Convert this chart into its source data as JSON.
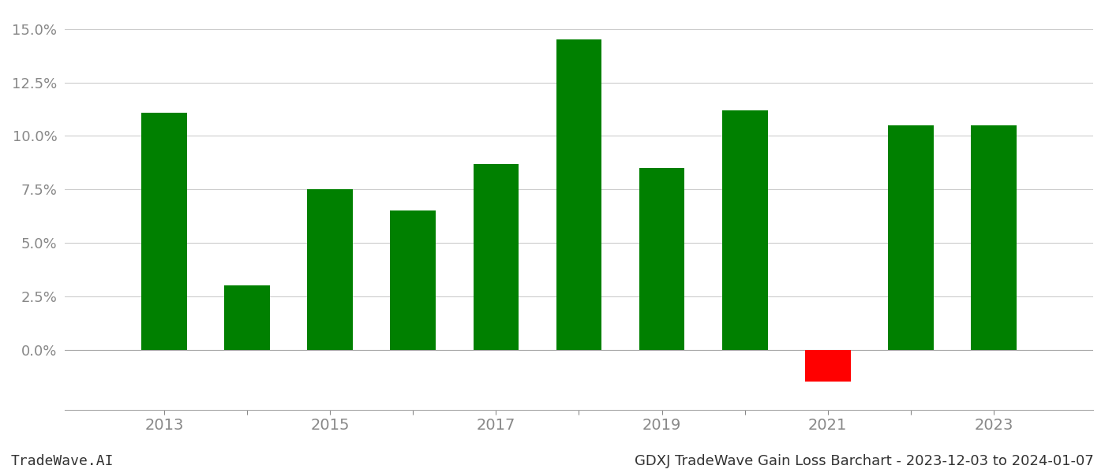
{
  "years": [
    2013,
    2014,
    2015,
    2016,
    2017,
    2018,
    2019,
    2020,
    2021,
    2022,
    2023
  ],
  "values": [
    0.111,
    0.03,
    0.075,
    0.065,
    0.087,
    0.145,
    0.085,
    0.112,
    -0.015,
    0.105,
    0.105
  ],
  "bar_colors": [
    "#008000",
    "#008000",
    "#008000",
    "#008000",
    "#008000",
    "#008000",
    "#008000",
    "#008000",
    "#ff0000",
    "#008000",
    "#008000"
  ],
  "background_color": "#ffffff",
  "grid_color": "#cccccc",
  "ylim_min": -0.028,
  "ylim_max": 0.158,
  "yticks": [
    0.0,
    0.025,
    0.05,
    0.075,
    0.1,
    0.125,
    0.15
  ],
  "xtick_labels": [
    2013,
    2015,
    2017,
    2019,
    2021,
    2023
  ],
  "footer_left": "TradeWave.AI",
  "footer_right": "GDXJ TradeWave Gain Loss Barchart - 2023-12-03 to 2024-01-07",
  "tick_label_color": "#888888",
  "footer_fontsize": 13,
  "bar_width": 0.55,
  "xlim_min": 2011.8,
  "xlim_max": 2024.2
}
